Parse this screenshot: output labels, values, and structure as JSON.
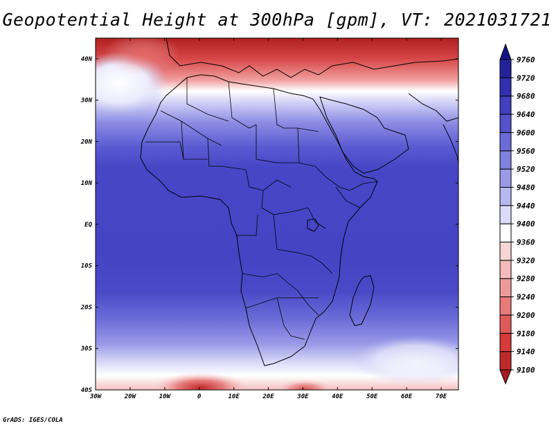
{
  "title": "Geopotential Height at 300hPa [gpm], VT: 2021031721",
  "credit": "GrADS: IGES/COLA",
  "map": {
    "lon_range": [
      -30,
      75
    ],
    "lat_range": [
      -40,
      45
    ],
    "lon_ticks": [
      {
        "value": -30,
        "label": "30W"
      },
      {
        "value": -20,
        "label": "20W"
      },
      {
        "value": -10,
        "label": "10W"
      },
      {
        "value": 0,
        "label": "0"
      },
      {
        "value": 10,
        "label": "10E"
      },
      {
        "value": 20,
        "label": "20E"
      },
      {
        "value": 30,
        "label": "30E"
      },
      {
        "value": 40,
        "label": "40E"
      },
      {
        "value": 50,
        "label": "50E"
      },
      {
        "value": 60,
        "label": "60E"
      },
      {
        "value": 70,
        "label": "70E"
      }
    ],
    "lat_ticks": [
      {
        "value": 40,
        "label": "40N"
      },
      {
        "value": 30,
        "label": "30N"
      },
      {
        "value": 20,
        "label": "20N"
      },
      {
        "value": 10,
        "label": "10N"
      },
      {
        "value": 0,
        "label": "EQ"
      },
      {
        "value": -10,
        "label": "10S"
      },
      {
        "value": -20,
        "label": "20S"
      },
      {
        "value": -30,
        "label": "30S"
      },
      {
        "value": -40,
        "label": "40S"
      }
    ]
  },
  "colorbar": {
    "levels": [
      9100,
      9140,
      9180,
      9200,
      9240,
      9280,
      9320,
      9360,
      9400,
      9440,
      9480,
      9520,
      9560,
      9600,
      9640,
      9680,
      9720,
      9760
    ],
    "colors": [
      "#a61c1c",
      "#be2a2a",
      "#d63a3a",
      "#e05a5a",
      "#e87a7a",
      "#ef9a9a",
      "#f5baba",
      "#f8d6d6",
      "#ffffff",
      "#dcdcfa",
      "#b8b8f0",
      "#9a9ae8",
      "#8080e0",
      "#6a6ad8",
      "#5252cc",
      "#4040c0",
      "#3030b0",
      "#22229a",
      "#151588"
    ]
  }
}
